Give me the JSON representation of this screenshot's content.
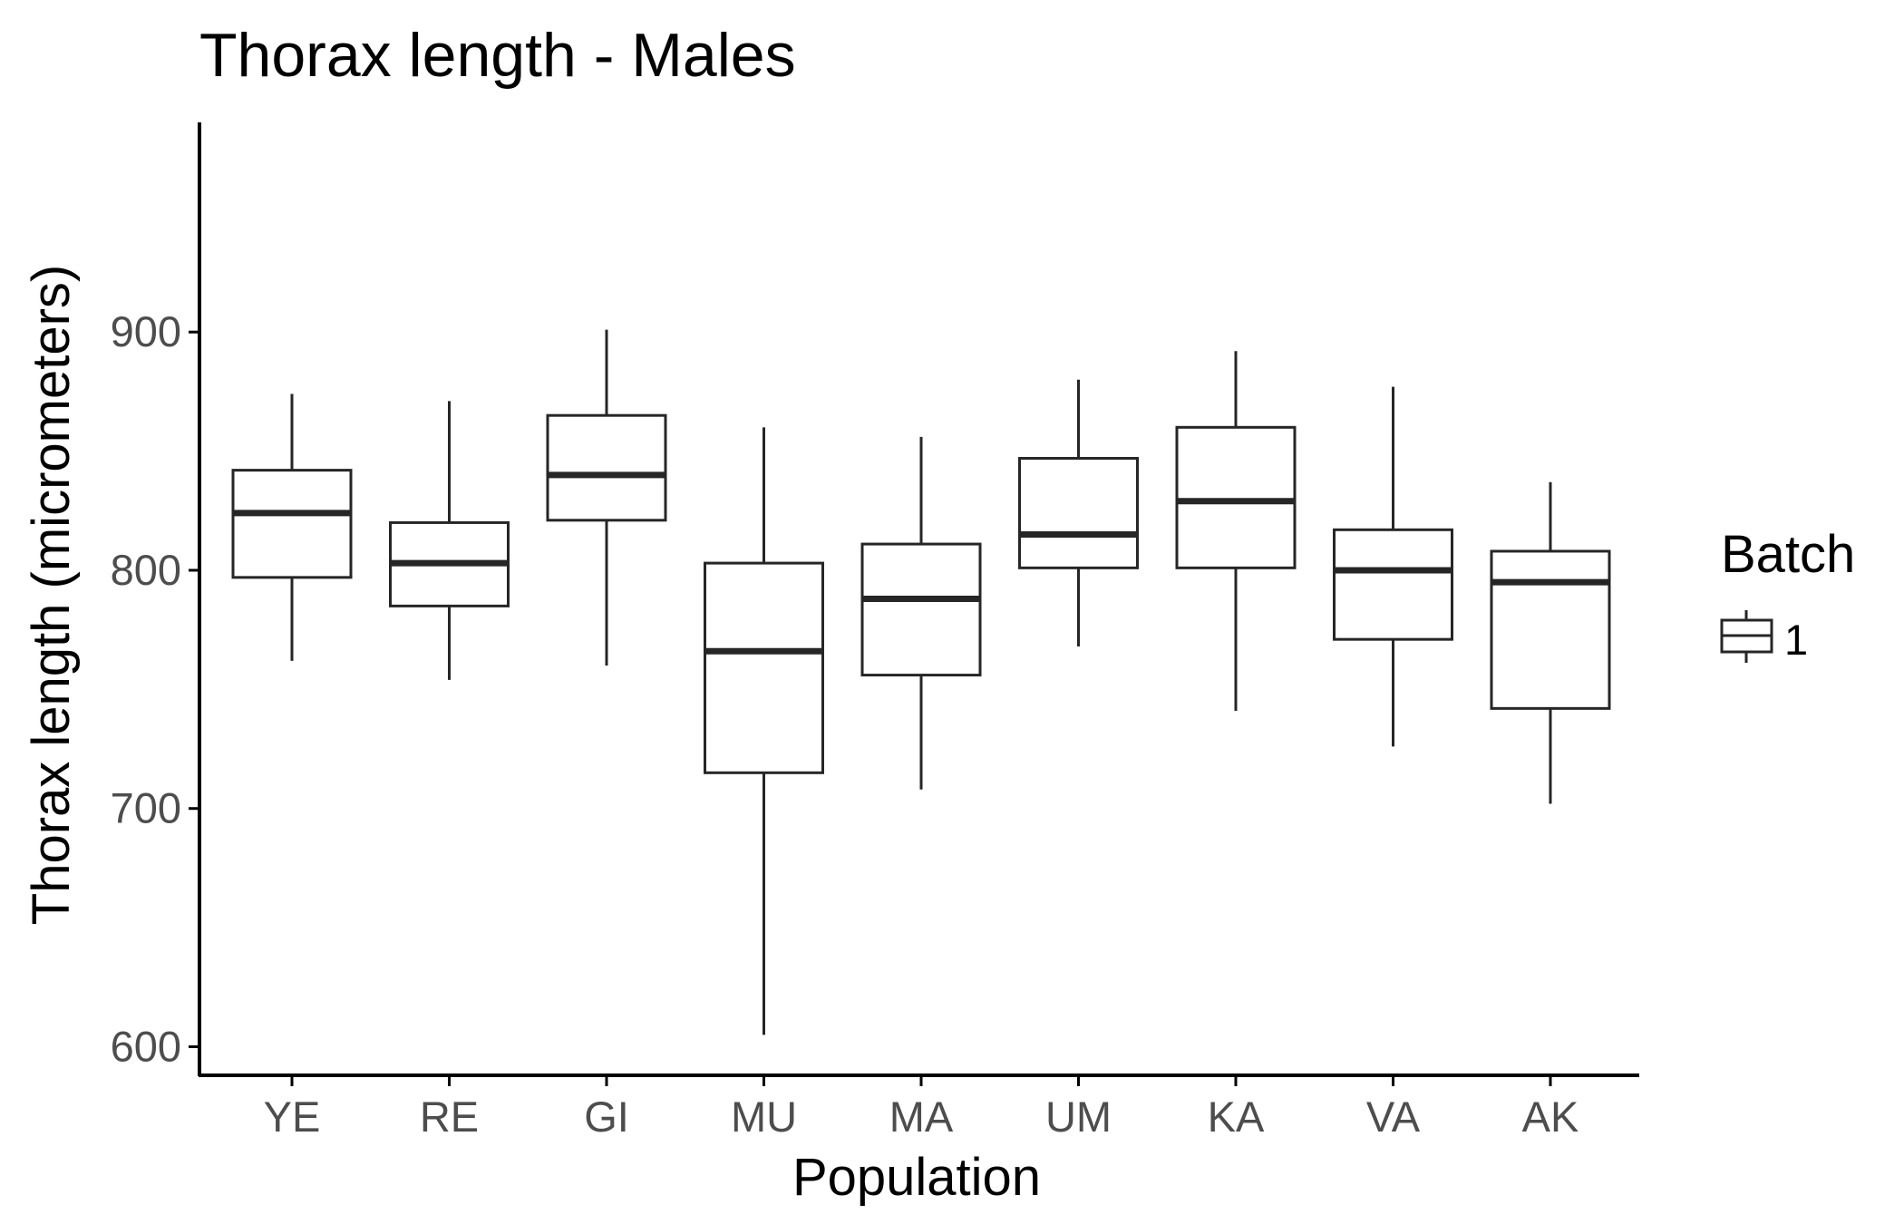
{
  "chart_data": {
    "type": "boxplot",
    "title": "Thorax length - Males",
    "xlabel": "Population",
    "ylabel": "Thorax length (micrometers)",
    "categories": [
      "YE",
      "RE",
      "GI",
      "MU",
      "MA",
      "UM",
      "KA",
      "VA",
      "AK"
    ],
    "boxes": [
      {
        "category": "YE",
        "whisker_low": 762,
        "q1": 797,
        "median": 824,
        "q3": 842,
        "whisker_high": 874
      },
      {
        "category": "RE",
        "whisker_low": 754,
        "q1": 785,
        "median": 803,
        "q3": 820,
        "whisker_high": 871
      },
      {
        "category": "GI",
        "whisker_low": 760,
        "q1": 821,
        "median": 840,
        "q3": 865,
        "whisker_high": 901
      },
      {
        "category": "MU",
        "whisker_low": 605,
        "q1": 715,
        "median": 766,
        "q3": 803,
        "whisker_high": 860
      },
      {
        "category": "MA",
        "whisker_low": 708,
        "q1": 756,
        "median": 788,
        "q3": 811,
        "whisker_high": 856
      },
      {
        "category": "UM",
        "whisker_low": 768,
        "q1": 801,
        "median": 815,
        "q3": 847,
        "whisker_high": 880
      },
      {
        "category": "KA",
        "whisker_low": 741,
        "q1": 801,
        "median": 829,
        "q3": 860,
        "whisker_high": 892
      },
      {
        "category": "VA",
        "whisker_low": 726,
        "q1": 771,
        "median": 800,
        "q3": 817,
        "whisker_high": 877
      },
      {
        "category": "AK",
        "whisker_low": 702,
        "q1": 742,
        "median": 795,
        "q3": 808,
        "whisker_high": 837
      }
    ],
    "yticks": [
      600,
      700,
      800,
      900
    ],
    "ytick_labels": [
      "600",
      "700",
      "800",
      "900"
    ],
    "ylim": [
      588,
      988
    ],
    "grid": false,
    "legend": {
      "title": "Batch",
      "entries": [
        "1"
      ],
      "position": "right"
    },
    "colors": {
      "box_stroke": "#262626",
      "axis": "#000000",
      "tick_label": "#4d4d4d",
      "fill": "#ffffff"
    }
  }
}
